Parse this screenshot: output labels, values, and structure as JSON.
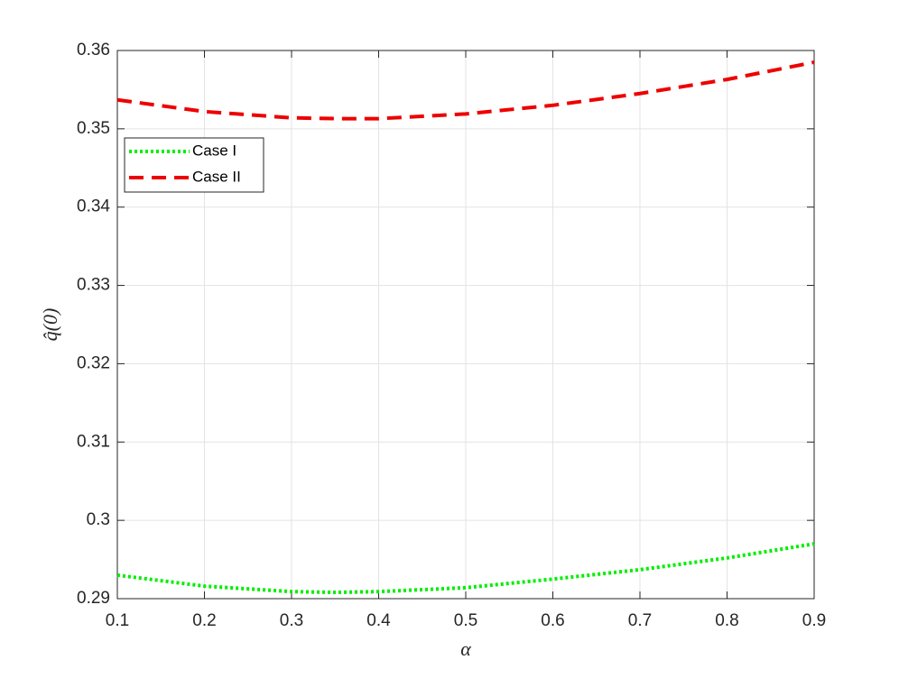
{
  "chart_data": {
    "type": "line",
    "xlabel": "α",
    "ylabel": "q̂(0)",
    "x": [
      0.1,
      0.2,
      0.3,
      0.35,
      0.4,
      0.5,
      0.6,
      0.7,
      0.8,
      0.9
    ],
    "series": [
      {
        "name": "Case I",
        "color": "#00ee00",
        "dash": "dotted",
        "values": [
          0.293,
          0.2916,
          0.2909,
          0.2908,
          0.2909,
          0.2914,
          0.2925,
          0.2937,
          0.2952,
          0.297
        ]
      },
      {
        "name": "Case II",
        "color": "#ee0000",
        "dash": "dashed",
        "values": [
          0.3537,
          0.3522,
          0.3514,
          0.3513,
          0.3513,
          0.3519,
          0.353,
          0.3545,
          0.3563,
          0.3585
        ]
      }
    ],
    "xlim": [
      0.1,
      0.9
    ],
    "xticks": [
      0.1,
      0.2,
      0.3,
      0.4,
      0.5,
      0.6,
      0.7,
      0.8,
      0.9
    ],
    "ylim": [
      0.29,
      0.36
    ],
    "yticks": [
      0.29,
      0.3,
      0.31,
      0.32,
      0.33,
      0.34,
      0.35,
      0.36
    ],
    "grid": true,
    "legend": "upper-left"
  }
}
